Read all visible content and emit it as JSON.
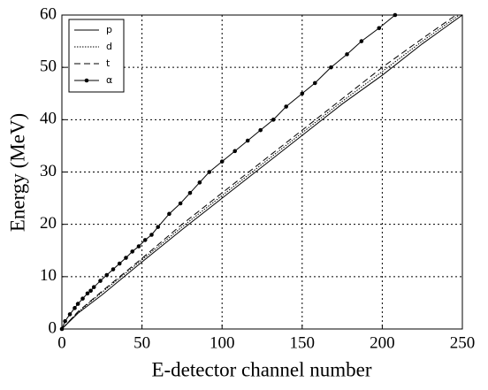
{
  "chart_data": {
    "type": "line",
    "xlabel": "E-detector channel number",
    "ylabel": "Energy (MeV)",
    "xlim": [
      0,
      250
    ],
    "ylim": [
      0,
      60
    ],
    "xticks": [
      0,
      50,
      100,
      150,
      200,
      250
    ],
    "yticks": [
      0,
      10,
      20,
      30,
      40,
      50,
      60
    ],
    "grid": true,
    "legend": "upper left",
    "series": [
      {
        "name": "p",
        "color": "#000000",
        "dash": "solid",
        "x": [
          0,
          10,
          25,
          50,
          75,
          100,
          125,
          150,
          175,
          200,
          225,
          250
        ],
        "values": [
          0,
          3,
          6.5,
          12.8,
          19,
          25,
          31,
          37,
          43,
          48.5,
          54.5,
          60
        ]
      },
      {
        "name": "d",
        "color": "#000000",
        "dash": "dotted",
        "x": [
          0,
          10,
          25,
          50,
          75,
          100,
          125,
          150,
          175,
          200,
          225,
          248
        ],
        "values": [
          0,
          3.2,
          7,
          13.2,
          19.5,
          25.5,
          31.5,
          37.5,
          43.5,
          49.2,
          55,
          60
        ]
      },
      {
        "name": "t",
        "color": "#000000",
        "dash": "dashed",
        "x": [
          0,
          10,
          25,
          50,
          75,
          100,
          125,
          150,
          175,
          200,
          225,
          246
        ],
        "values": [
          0,
          3.3,
          7.2,
          13.5,
          20,
          26,
          32,
          38,
          44,
          50,
          55.5,
          60
        ]
      },
      {
        "name": "α",
        "color": "#000000",
        "dash": "solid",
        "marker": "dot",
        "x": [
          0,
          2,
          5,
          8,
          10,
          13,
          16,
          18,
          20,
          24,
          28,
          32,
          36,
          40,
          44,
          48,
          52,
          56,
          60,
          67,
          74,
          80,
          86,
          92,
          100,
          108,
          116,
          124,
          132,
          140,
          150,
          158,
          168,
          178,
          187,
          198,
          208
        ],
        "values": [
          0,
          1.5,
          2.8,
          4,
          4.8,
          5.8,
          6.8,
          7.3,
          8,
          9.2,
          10.3,
          11.4,
          12.5,
          13.6,
          14.8,
          15.8,
          17,
          18,
          19.5,
          22,
          24,
          26,
          28,
          30,
          32,
          34,
          36,
          38,
          40,
          42.5,
          45,
          47,
          50,
          52.5,
          55,
          57.5,
          60
        ]
      }
    ]
  }
}
